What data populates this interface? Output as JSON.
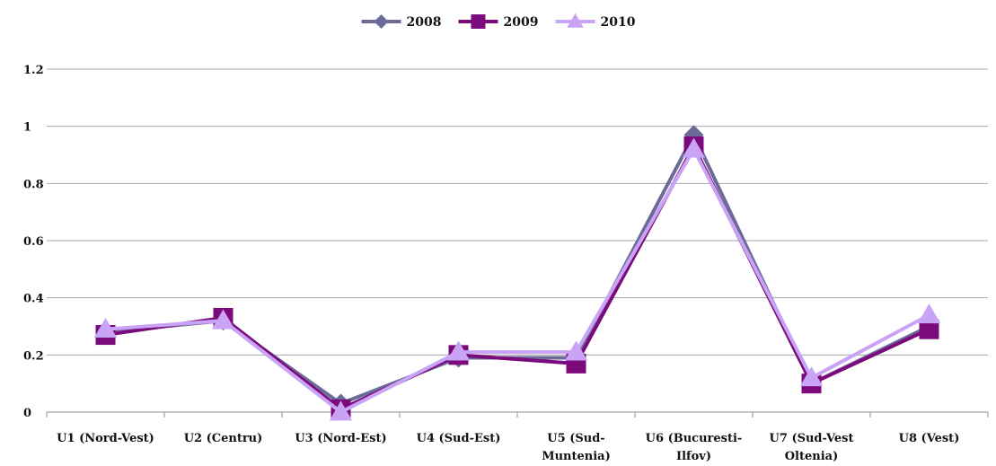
{
  "chart_data": {
    "type": "line",
    "categories": [
      "U1 (Nord-Vest)",
      "U2 (Centru)",
      "U3 (Nord-Est)",
      "U4 (Sud-Est)",
      "U5 (Sud-Muntenia)",
      "U6 (Bucuresti-Ilfov)",
      "U7 (Sud-Vest Oltenia)",
      "U8 (Vest)"
    ],
    "category_label_lines": [
      [
        "U1 (Nord-Vest)"
      ],
      [
        "U2 (Centru)"
      ],
      [
        "U3 (Nord-Est)"
      ],
      [
        "U4 (Sud-Est)"
      ],
      [
        "U5 (Sud-",
        "Muntenia)"
      ],
      [
        "U6 (Bucuresti-",
        "Ilfov)"
      ],
      [
        "U7 (Sud-Vest",
        "Oltenia)"
      ],
      [
        "U8 (Vest)"
      ]
    ],
    "series": [
      {
        "name": "2008",
        "values": [
          0.28,
          0.32,
          0.03,
          0.19,
          0.19,
          0.97,
          0.1,
          0.3
        ],
        "color": "#6b6b9a",
        "marker": "diamond"
      },
      {
        "name": "2009",
        "values": [
          0.27,
          0.33,
          0.01,
          0.2,
          0.17,
          0.93,
          0.1,
          0.29
        ],
        "color": "#7b0a7b",
        "marker": "square"
      },
      {
        "name": "2010",
        "values": [
          0.29,
          0.32,
          0.0,
          0.21,
          0.21,
          0.92,
          0.12,
          0.34
        ],
        "color": "#c9a3f5",
        "marker": "triangle"
      }
    ],
    "ylim": [
      0,
      1.2
    ],
    "yticks": [
      0,
      0.2,
      0.4,
      0.6,
      0.8,
      1,
      1.2
    ],
    "ytick_labels": [
      "0",
      "0.2",
      "0.4",
      "0.6",
      "0.8",
      "1",
      "1.2"
    ],
    "grid": true,
    "legend_position": "top-center",
    "title": "",
    "xlabel": "",
    "ylabel": ""
  }
}
